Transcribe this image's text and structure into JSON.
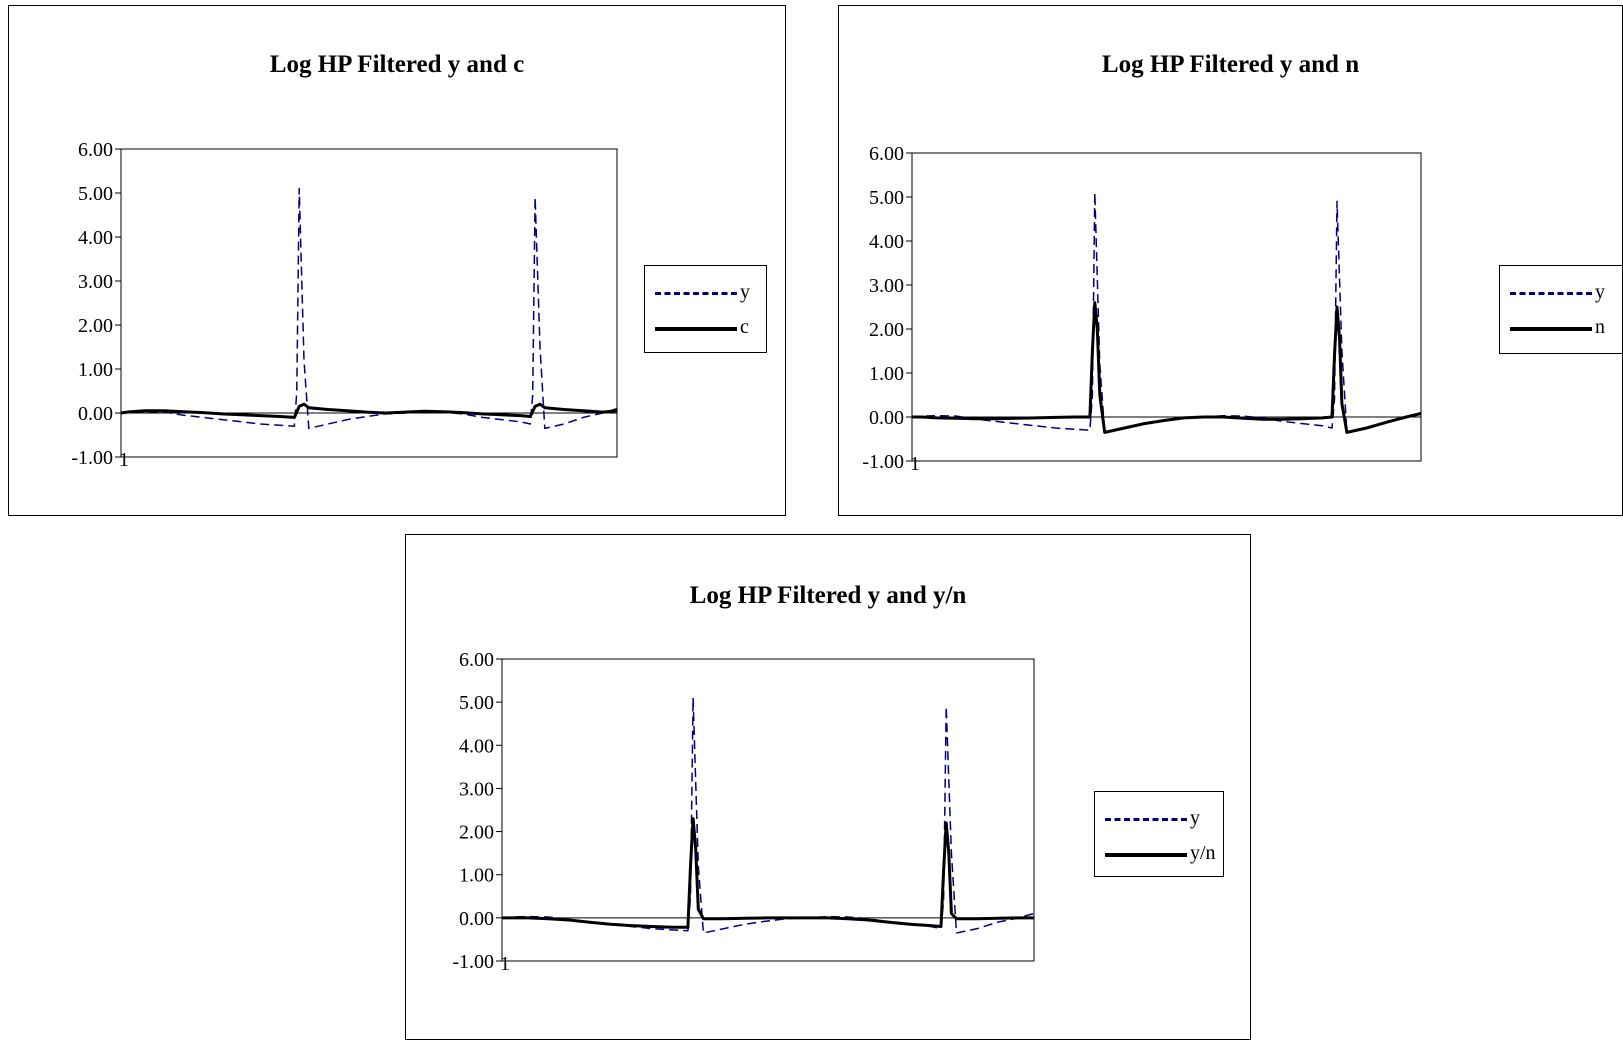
{
  "chart_data": [
    {
      "type": "line",
      "title": "Log HP Filtered y and c",
      "xlabel": "",
      "ylabel": "",
      "ylim": [
        -1.0,
        6.0
      ],
      "yticks": [
        "-1.00",
        "0.00",
        "1.00",
        "2.00",
        "3.00",
        "4.00",
        "5.00",
        "6.00"
      ],
      "xticks": [
        "1"
      ],
      "grid": false,
      "legend_position": "right",
      "series": [
        {
          "name": "y",
          "color": "#000080",
          "style": "dashed",
          "x": [
            1,
            3,
            6,
            10,
            14,
            18,
            22,
            26,
            30,
            34,
            37,
            37.5,
            38,
            39,
            40,
            44,
            48,
            52,
            56,
            60,
            64,
            68,
            72,
            76,
            80,
            84,
            86,
            86.5,
            87,
            88,
            89,
            93,
            97,
            101,
            104
          ],
          "values": [
            0.0,
            0.02,
            0.03,
            0.02,
            -0.05,
            -0.1,
            -0.15,
            -0.2,
            -0.25,
            -0.28,
            -0.3,
            0.5,
            5.1,
            1.2,
            -0.35,
            -0.25,
            -0.15,
            -0.08,
            -0.02,
            0.0,
            0.03,
            0.02,
            -0.02,
            -0.1,
            -0.15,
            -0.2,
            -0.25,
            0.4,
            4.9,
            1.5,
            -0.35,
            -0.25,
            -0.1,
            0.0,
            0.1
          ]
        },
        {
          "name": "c",
          "color": "#000000",
          "style": "solid",
          "x": [
            1,
            3,
            6,
            10,
            14,
            18,
            22,
            26,
            30,
            34,
            37,
            38,
            39,
            40,
            44,
            48,
            52,
            56,
            60,
            64,
            68,
            72,
            76,
            80,
            84,
            86,
            87,
            88,
            89,
            93,
            97,
            101,
            104
          ],
          "values": [
            0.0,
            0.03,
            0.05,
            0.05,
            0.03,
            0.01,
            -0.02,
            -0.04,
            -0.06,
            -0.08,
            -0.1,
            0.15,
            0.2,
            0.12,
            0.08,
            0.05,
            0.02,
            0.0,
            0.02,
            0.04,
            0.03,
            0.01,
            -0.02,
            -0.04,
            -0.06,
            -0.08,
            0.15,
            0.2,
            0.12,
            0.08,
            0.05,
            0.02,
            0.05
          ]
        }
      ]
    },
    {
      "type": "line",
      "title": "Log HP Filtered y and n",
      "xlabel": "",
      "ylabel": "",
      "ylim": [
        -1.0,
        6.0
      ],
      "yticks": [
        "-1.00",
        "0.00",
        "1.00",
        "2.00",
        "3.00",
        "4.00",
        "5.00",
        "6.00"
      ],
      "xticks": [
        "1"
      ],
      "grid": false,
      "legend_position": "right",
      "series": [
        {
          "name": "y",
          "color": "#000080",
          "style": "dashed",
          "x": [
            1,
            3,
            6,
            10,
            14,
            18,
            22,
            26,
            30,
            34,
            37,
            37.5,
            38,
            39,
            40,
            44,
            48,
            52,
            56,
            60,
            64,
            68,
            72,
            76,
            80,
            84,
            86,
            86.5,
            87,
            88,
            89,
            93,
            97,
            101,
            104
          ],
          "values": [
            0.0,
            0.02,
            0.03,
            0.02,
            -0.05,
            -0.1,
            -0.15,
            -0.2,
            -0.25,
            -0.28,
            -0.3,
            0.5,
            5.1,
            1.2,
            -0.35,
            -0.25,
            -0.15,
            -0.08,
            -0.02,
            0.0,
            0.03,
            0.02,
            -0.02,
            -0.1,
            -0.15,
            -0.2,
            -0.25,
            0.4,
            4.9,
            1.5,
            -0.35,
            -0.25,
            -0.1,
            0.0,
            0.1
          ]
        },
        {
          "name": "n",
          "color": "#000000",
          "style": "solid",
          "x": [
            1,
            3,
            6,
            10,
            14,
            18,
            22,
            26,
            30,
            34,
            37,
            37.5,
            38,
            38.5,
            39,
            40,
            44,
            48,
            52,
            56,
            60,
            64,
            68,
            72,
            76,
            80,
            84,
            86,
            86.5,
            87,
            87.5,
            88,
            89,
            93,
            97,
            101,
            104
          ],
          "values": [
            0.0,
            0.0,
            -0.02,
            -0.03,
            -0.04,
            -0.04,
            -0.03,
            -0.02,
            -0.01,
            0.0,
            0.0,
            1.5,
            2.6,
            2.0,
            0.5,
            -0.35,
            -0.25,
            -0.15,
            -0.08,
            -0.02,
            0.0,
            0.0,
            -0.03,
            -0.05,
            -0.05,
            -0.04,
            -0.02,
            0.0,
            1.4,
            2.5,
            1.8,
            0.3,
            -0.35,
            -0.25,
            -0.12,
            0.0,
            0.08
          ]
        }
      ]
    },
    {
      "type": "line",
      "title": "Log HP Filtered y and y/n",
      "xlabel": "",
      "ylabel": "",
      "ylim": [
        -1.0,
        6.0
      ],
      "yticks": [
        "-1.00",
        "0.00",
        "1.00",
        "2.00",
        "3.00",
        "4.00",
        "5.00",
        "6.00"
      ],
      "xticks": [
        "1"
      ],
      "grid": false,
      "legend_position": "right",
      "series": [
        {
          "name": "y",
          "color": "#000080",
          "style": "dashed",
          "x": [
            1,
            3,
            6,
            10,
            14,
            18,
            22,
            26,
            30,
            34,
            37,
            37.5,
            38,
            39,
            40,
            44,
            48,
            52,
            56,
            60,
            64,
            68,
            72,
            76,
            80,
            84,
            86,
            86.5,
            87,
            88,
            89,
            93,
            97,
            101,
            104
          ],
          "values": [
            0.0,
            0.02,
            0.03,
            0.02,
            -0.05,
            -0.1,
            -0.15,
            -0.2,
            -0.25,
            -0.28,
            -0.3,
            0.5,
            5.1,
            1.2,
            -0.35,
            -0.25,
            -0.15,
            -0.08,
            -0.02,
            0.0,
            0.03,
            0.02,
            -0.02,
            -0.1,
            -0.15,
            -0.2,
            -0.25,
            0.4,
            4.9,
            1.5,
            -0.35,
            -0.25,
            -0.1,
            0.0,
            0.1
          ]
        },
        {
          "name": "y/n",
          "color": "#000000",
          "style": "solid",
          "x": [
            1,
            3,
            6,
            10,
            14,
            18,
            22,
            26,
            30,
            34,
            37,
            37.5,
            38,
            38.5,
            39,
            40,
            44,
            48,
            52,
            56,
            60,
            64,
            68,
            72,
            76,
            80,
            84,
            86,
            86.5,
            87,
            87.5,
            88,
            89,
            93,
            97,
            101,
            104
          ],
          "values": [
            0.0,
            0.0,
            0.0,
            -0.02,
            -0.05,
            -0.1,
            -0.15,
            -0.18,
            -0.2,
            -0.22,
            -0.22,
            1.2,
            2.3,
            1.6,
            0.2,
            -0.02,
            -0.02,
            -0.01,
            0.0,
            0.0,
            0.0,
            0.0,
            -0.02,
            -0.05,
            -0.1,
            -0.15,
            -0.18,
            -0.2,
            1.1,
            2.2,
            1.5,
            0.1,
            -0.02,
            -0.02,
            -0.01,
            0.0,
            0.0
          ]
        }
      ]
    }
  ]
}
